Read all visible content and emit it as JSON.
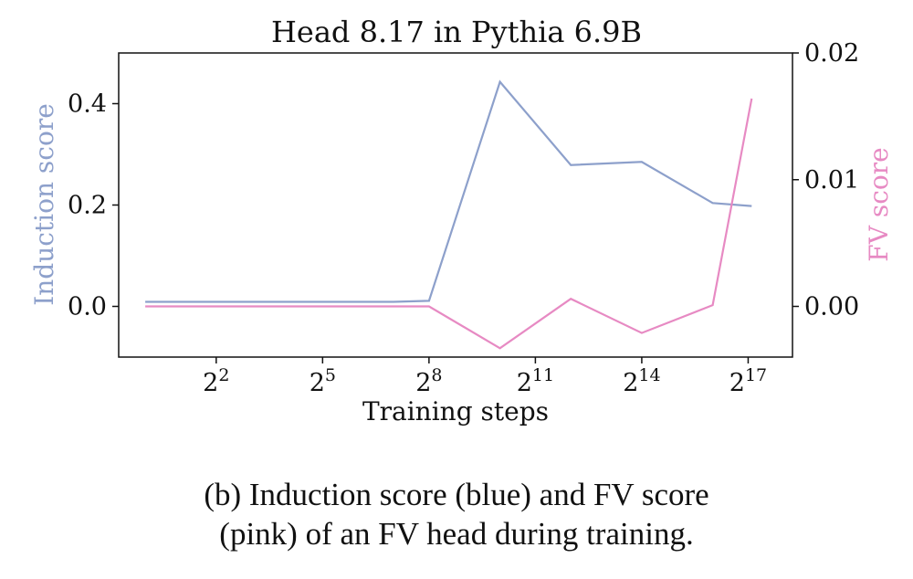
{
  "chart_data": {
    "type": "line",
    "title": "Head 8.17 in Pythia 6.9B",
    "xlabel": "Training steps",
    "ylabel_left": "Induction score",
    "ylabel_right": "FV score",
    "x_scale": "log2",
    "x_exponents": [
      0,
      1,
      2,
      3,
      4,
      5,
      6,
      7,
      8,
      10,
      12,
      14,
      16,
      17.1
    ],
    "x_ticks": [
      {
        "base": "2",
        "exp": "2",
        "value": 2
      },
      {
        "base": "2",
        "exp": "5",
        "value": 5
      },
      {
        "base": "2",
        "exp": "8",
        "value": 8
      },
      {
        "base": "2",
        "exp": "11",
        "value": 11
      },
      {
        "base": "2",
        "exp": "14",
        "value": 14
      },
      {
        "base": "2",
        "exp": "17",
        "value": 17
      }
    ],
    "xlim": [
      -0.75,
      18.25
    ],
    "series": [
      {
        "name": "Induction score",
        "axis": "left",
        "color": "#8DA0CB",
        "values": [
          0.009,
          0.009,
          0.009,
          0.009,
          0.009,
          0.009,
          0.009,
          0.009,
          0.011,
          0.443,
          0.279,
          0.285,
          0.204,
          0.198
        ]
      },
      {
        "name": "FV score",
        "axis": "right",
        "color": "#E78AC3",
        "values": [
          0.0,
          0.0,
          0.0,
          0.0,
          0.0,
          0.0,
          0.0,
          0.0,
          0.0,
          -0.0033,
          0.0006,
          -0.0021,
          0.0001,
          0.0164
        ]
      }
    ],
    "ylim_left": [
      -0.1,
      0.5
    ],
    "yticks_left": [
      {
        "label": "0.0",
        "value": 0.0
      },
      {
        "label": "0.2",
        "value": 0.2
      },
      {
        "label": "0.4",
        "value": 0.4
      }
    ],
    "ylim_right": [
      -0.004,
      0.02
    ],
    "yticks_right": [
      {
        "label": "0.00",
        "value": 0.0
      },
      {
        "label": "0.01",
        "value": 0.01
      },
      {
        "label": "0.02",
        "value": 0.02
      }
    ],
    "grid": false
  },
  "caption": {
    "line1": "(b) Induction score (blue) and FV score",
    "line2": "(pink) of an FV head during training."
  }
}
